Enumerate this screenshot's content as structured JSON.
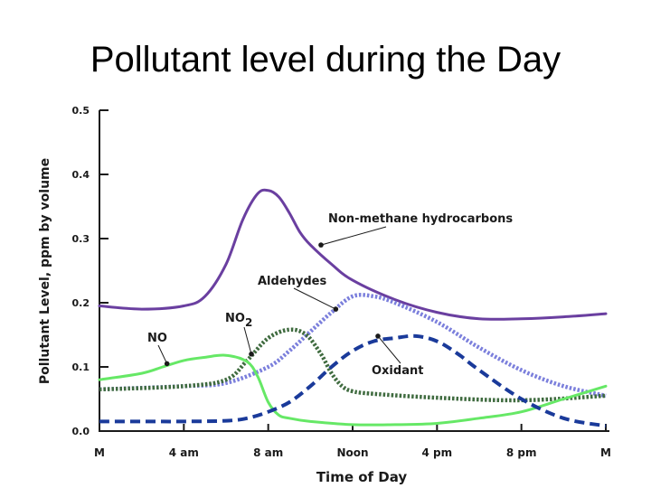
{
  "slide": {
    "title": "Pollutant level during the Day"
  },
  "chart_data": {
    "type": "line",
    "title": "Pollutant level during the Day",
    "xlabel": "Time of Day",
    "ylabel": "Pollutant Level, ppm by volume",
    "x_tick_labels": [
      "M",
      "4 am",
      "8 am",
      "Noon",
      "4 pm",
      "8 pm",
      "M"
    ],
    "x_tick_hours": [
      0,
      4,
      8,
      12,
      16,
      20,
      24
    ],
    "xlim": [
      0,
      24
    ],
    "y_ticks": [
      "0.0",
      "0.1",
      "0.2",
      "0.3",
      "0.4",
      "0.5"
    ],
    "ylim": [
      0,
      0.5
    ],
    "grid": false,
    "series": [
      {
        "name": "Non-methane hydrocarbons",
        "color": "#6a3fa0",
        "style": "solid",
        "x": [
          0,
          2,
          4,
          5,
          6,
          6.8,
          7.5,
          8,
          8.5,
          9,
          9.5,
          10,
          11,
          12,
          14,
          16,
          18,
          20,
          22,
          24
        ],
        "y": [
          0.195,
          0.19,
          0.195,
          0.21,
          0.26,
          0.33,
          0.37,
          0.375,
          0.365,
          0.34,
          0.31,
          0.29,
          0.26,
          0.235,
          0.205,
          0.185,
          0.175,
          0.175,
          0.178,
          0.183
        ]
      },
      {
        "name": "Aldehydes",
        "color": "#7b7fdc",
        "style": "dotted",
        "x": [
          0,
          4,
          6,
          8,
          9,
          10,
          11,
          12,
          13,
          14,
          16,
          18,
          20,
          22,
          24
        ],
        "y": [
          0.065,
          0.07,
          0.075,
          0.1,
          0.125,
          0.155,
          0.185,
          0.21,
          0.21,
          0.2,
          0.17,
          0.13,
          0.095,
          0.07,
          0.055
        ]
      },
      {
        "name": "NO2",
        "color": "#3f6b3f",
        "style": "dotted",
        "x": [
          0,
          4,
          6,
          7,
          8,
          9,
          9.8,
          10.5,
          11,
          11.5,
          12,
          13,
          16,
          20,
          24
        ],
        "y": [
          0.065,
          0.07,
          0.08,
          0.11,
          0.145,
          0.158,
          0.15,
          0.12,
          0.09,
          0.07,
          0.062,
          0.058,
          0.052,
          0.048,
          0.055
        ]
      },
      {
        "name": "NO",
        "color": "#66e866",
        "style": "solid",
        "x": [
          0,
          2,
          3,
          4,
          5,
          6,
          7,
          7.5,
          8,
          8.5,
          9,
          10,
          12,
          14,
          16,
          18,
          20,
          22,
          24
        ],
        "y": [
          0.08,
          0.09,
          0.1,
          0.11,
          0.115,
          0.118,
          0.108,
          0.085,
          0.045,
          0.025,
          0.02,
          0.015,
          0.01,
          0.01,
          0.012,
          0.02,
          0.03,
          0.05,
          0.07
        ]
      },
      {
        "name": "Oxidant",
        "color": "#1a3a9a",
        "style": "dashed",
        "x": [
          0,
          2,
          4,
          6,
          7,
          8,
          9,
          10,
          11,
          12,
          13,
          14,
          15,
          16,
          17,
          18,
          20,
          22,
          24
        ],
        "y": [
          0.015,
          0.015,
          0.015,
          0.016,
          0.02,
          0.03,
          0.045,
          0.07,
          0.1,
          0.125,
          0.14,
          0.145,
          0.148,
          0.14,
          0.12,
          0.095,
          0.05,
          0.02,
          0.008
        ]
      }
    ],
    "annotations": [
      {
        "label": "Non-methane hydrocarbons",
        "series": "Non-methane hydrocarbons",
        "x": 10.5,
        "y": 0.29
      },
      {
        "label": "Aldehydes",
        "series": "Aldehydes",
        "x": 11.2,
        "y": 0.19
      },
      {
        "label": "NO",
        "label_sub": "2",
        "series": "NO2",
        "x": 7.2,
        "y": 0.12
      },
      {
        "label": "NO",
        "series": "NO",
        "x": 3.2,
        "y": 0.105
      },
      {
        "label": "Oxidant",
        "series": "Oxidant",
        "x": 13.2,
        "y": 0.148
      }
    ]
  }
}
